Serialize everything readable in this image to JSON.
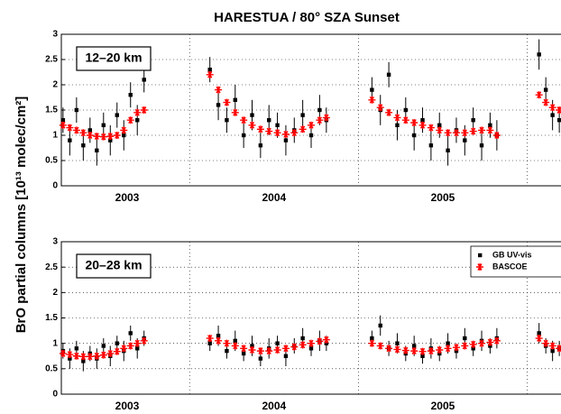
{
  "title": "HARESTUA / 80° SZA Sunset",
  "y_label": "BrO partial columns [10¹³ molec/cm²]",
  "chart_data": [
    {
      "type": "scatter",
      "panel_label": "12–20 km",
      "xlim": [
        2003.24,
        2006.2
      ],
      "ylim": [
        0,
        3
      ],
      "yticks": [
        0,
        0.5,
        1,
        1.5,
        2,
        2.5,
        3
      ],
      "grid": true,
      "xticks": [
        {
          "value": 2003.63,
          "label": "2003"
        },
        {
          "value": 2004.5,
          "label": "2004"
        },
        {
          "value": 2005.5,
          "label": "2005"
        }
      ],
      "xgrid": [
        2004,
        2005,
        2006
      ],
      "x": [
        2003.25,
        2003.29,
        2003.33,
        2003.37,
        2003.41,
        2003.45,
        2003.49,
        2003.53,
        2003.57,
        2003.61,
        2003.65,
        2003.69,
        2003.73,
        2004.12,
        2004.17,
        2004.22,
        2004.27,
        2004.32,
        2004.37,
        2004.42,
        2004.47,
        2004.52,
        2004.57,
        2004.62,
        2004.67,
        2004.72,
        2004.77,
        2004.81,
        2005.08,
        2005.13,
        2005.18,
        2005.23,
        2005.28,
        2005.33,
        2005.38,
        2005.43,
        2005.48,
        2005.53,
        2005.58,
        2005.63,
        2005.68,
        2005.73,
        2005.78,
        2005.82,
        2006.07,
        2006.11,
        2006.15,
        2006.19
      ],
      "series": [
        {
          "color": "#000000",
          "marker": "square",
          "values": [
            1.3,
            0.9,
            1.5,
            0.8,
            1.1,
            0.7,
            1.2,
            0.9,
            1.4,
            1.0,
            1.8,
            1.3,
            2.1,
            2.3,
            1.6,
            1.3,
            1.7,
            1.0,
            1.4,
            0.8,
            1.3,
            1.2,
            0.9,
            1.1,
            1.4,
            1.0,
            1.5,
            1.3,
            1.9,
            1.5,
            2.2,
            1.2,
            1.5,
            1.0,
            1.3,
            0.8,
            1.2,
            0.7,
            1.1,
            0.9,
            1.3,
            0.8,
            1.2,
            1.0,
            2.6,
            1.9,
            1.4,
            1.3
          ],
          "errors": [
            0.25,
            0.3,
            0.25,
            0.3,
            0.25,
            0.3,
            0.25,
            0.3,
            0.25,
            0.3,
            0.25,
            0.3,
            0.25,
            0.25,
            0.3,
            0.25,
            0.3,
            0.25,
            0.3,
            0.25,
            0.3,
            0.25,
            0.3,
            0.25,
            0.3,
            0.25,
            0.3,
            0.25,
            0.25,
            0.3,
            0.25,
            0.3,
            0.25,
            0.3,
            0.25,
            0.3,
            0.25,
            0.3,
            0.25,
            0.3,
            0.25,
            0.3,
            0.25,
            0.3,
            0.3,
            0.25,
            0.3,
            0.25
          ]
        },
        {
          "color": "#ff0000",
          "marker": "star",
          "values": [
            1.2,
            1.15,
            1.1,
            1.05,
            1.0,
            0.98,
            0.97,
            0.98,
            1.0,
            1.1,
            1.3,
            1.45,
            1.5,
            2.2,
            1.9,
            1.65,
            1.45,
            1.3,
            1.2,
            1.12,
            1.08,
            1.05,
            1.02,
            1.05,
            1.12,
            1.2,
            1.3,
            1.35,
            1.7,
            1.55,
            1.45,
            1.35,
            1.3,
            1.25,
            1.2,
            1.15,
            1.1,
            1.05,
            1.05,
            1.05,
            1.08,
            1.1,
            1.1,
            1.0,
            1.8,
            1.65,
            1.55,
            1.5
          ]
        }
      ]
    },
    {
      "type": "scatter",
      "panel_label": "20–28 km",
      "legend": "upper right",
      "xlim": [
        2003.24,
        2006.2
      ],
      "ylim": [
        0,
        3
      ],
      "yticks": [
        0,
        0.5,
        1,
        1.5,
        2,
        2.5,
        3
      ],
      "grid": true,
      "xticks": [
        {
          "value": 2003.63,
          "label": "2003"
        },
        {
          "value": 2004.5,
          "label": "2004"
        },
        {
          "value": 2005.5,
          "label": "2005"
        }
      ],
      "xgrid": [
        2004,
        2005,
        2006
      ],
      "x": [
        2003.25,
        2003.29,
        2003.33,
        2003.37,
        2003.41,
        2003.45,
        2003.49,
        2003.53,
        2003.57,
        2003.61,
        2003.65,
        2003.69,
        2003.73,
        2004.12,
        2004.17,
        2004.22,
        2004.27,
        2004.32,
        2004.37,
        2004.42,
        2004.47,
        2004.52,
        2004.57,
        2004.62,
        2004.67,
        2004.72,
        2004.77,
        2004.81,
        2005.08,
        2005.13,
        2005.18,
        2005.23,
        2005.28,
        2005.33,
        2005.38,
        2005.43,
        2005.48,
        2005.53,
        2005.58,
        2005.63,
        2005.68,
        2005.73,
        2005.78,
        2005.82,
        2006.07,
        2006.11,
        2006.15,
        2006.19
      ],
      "series": [
        {
          "name": "GB UV-vis",
          "color": "#000000",
          "marker": "square",
          "values": [
            0.85,
            0.7,
            0.9,
            0.65,
            0.8,
            0.7,
            0.95,
            0.75,
            1.0,
            0.85,
            1.2,
            0.9,
            1.1,
            1.0,
            1.15,
            0.85,
            1.05,
            0.8,
            0.95,
            0.7,
            0.9,
            1.0,
            0.75,
            0.95,
            1.1,
            0.9,
            1.05,
            1.0,
            1.1,
            1.35,
            0.9,
            1.0,
            0.8,
            0.95,
            0.75,
            0.9,
            0.8,
            1.0,
            0.85,
            1.1,
            0.9,
            1.05,
            0.95,
            1.1,
            1.2,
            0.95,
            0.85,
            0.9
          ],
          "errors": [
            0.15,
            0.2,
            0.15,
            0.2,
            0.15,
            0.2,
            0.15,
            0.2,
            0.15,
            0.2,
            0.15,
            0.2,
            0.15,
            0.15,
            0.2,
            0.15,
            0.2,
            0.15,
            0.2,
            0.15,
            0.2,
            0.15,
            0.2,
            0.15,
            0.2,
            0.15,
            0.2,
            0.15,
            0.15,
            0.2,
            0.15,
            0.2,
            0.15,
            0.2,
            0.15,
            0.2,
            0.15,
            0.2,
            0.15,
            0.2,
            0.15,
            0.2,
            0.15,
            0.2,
            0.2,
            0.15,
            0.2,
            0.15
          ]
        },
        {
          "name": "BASCOE",
          "color": "#ff0000",
          "marker": "star",
          "values": [
            0.8,
            0.78,
            0.75,
            0.74,
            0.74,
            0.75,
            0.77,
            0.8,
            0.84,
            0.9,
            0.95,
            1.0,
            1.05,
            1.1,
            1.05,
            1.0,
            0.95,
            0.9,
            0.87,
            0.85,
            0.85,
            0.87,
            0.9,
            0.93,
            0.97,
            1.0,
            1.04,
            1.07,
            1.0,
            0.95,
            0.9,
            0.88,
            0.86,
            0.85,
            0.84,
            0.85,
            0.87,
            0.9,
            0.92,
            0.95,
            0.98,
            1.0,
            1.02,
            1.05,
            1.1,
            1.0,
            0.95,
            0.9
          ]
        }
      ]
    }
  ]
}
